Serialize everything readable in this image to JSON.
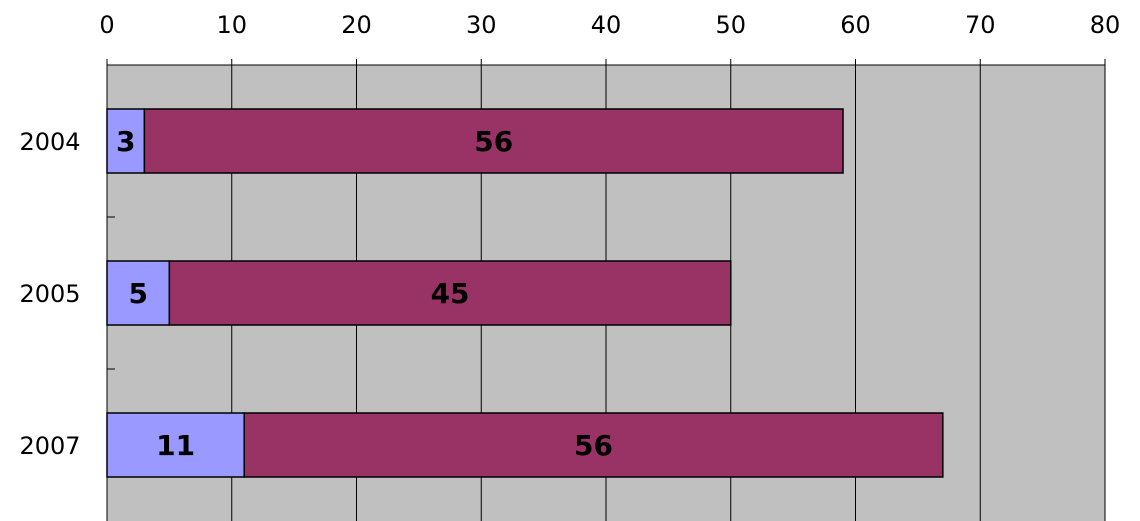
{
  "chart_data": {
    "type": "bar",
    "orientation": "horizontal",
    "stacked": true,
    "categories": [
      "2004",
      "2005",
      "2007"
    ],
    "series": [
      {
        "values": [
          3,
          5,
          11
        ],
        "color": "#9999ff"
      },
      {
        "values": [
          56,
          45,
          56
        ],
        "color": "#993366"
      }
    ],
    "xlim": [
      0,
      80
    ],
    "x_ticks": [
      0,
      10,
      20,
      30,
      40,
      50,
      60,
      70,
      80
    ],
    "x_tick_labels": [
      "0",
      "10",
      "20",
      "30",
      "40",
      "50",
      "60",
      "70",
      "80"
    ],
    "x_axis_position": "top",
    "grid": true,
    "plot_background": "#c0c0c0",
    "legend": "none"
  }
}
